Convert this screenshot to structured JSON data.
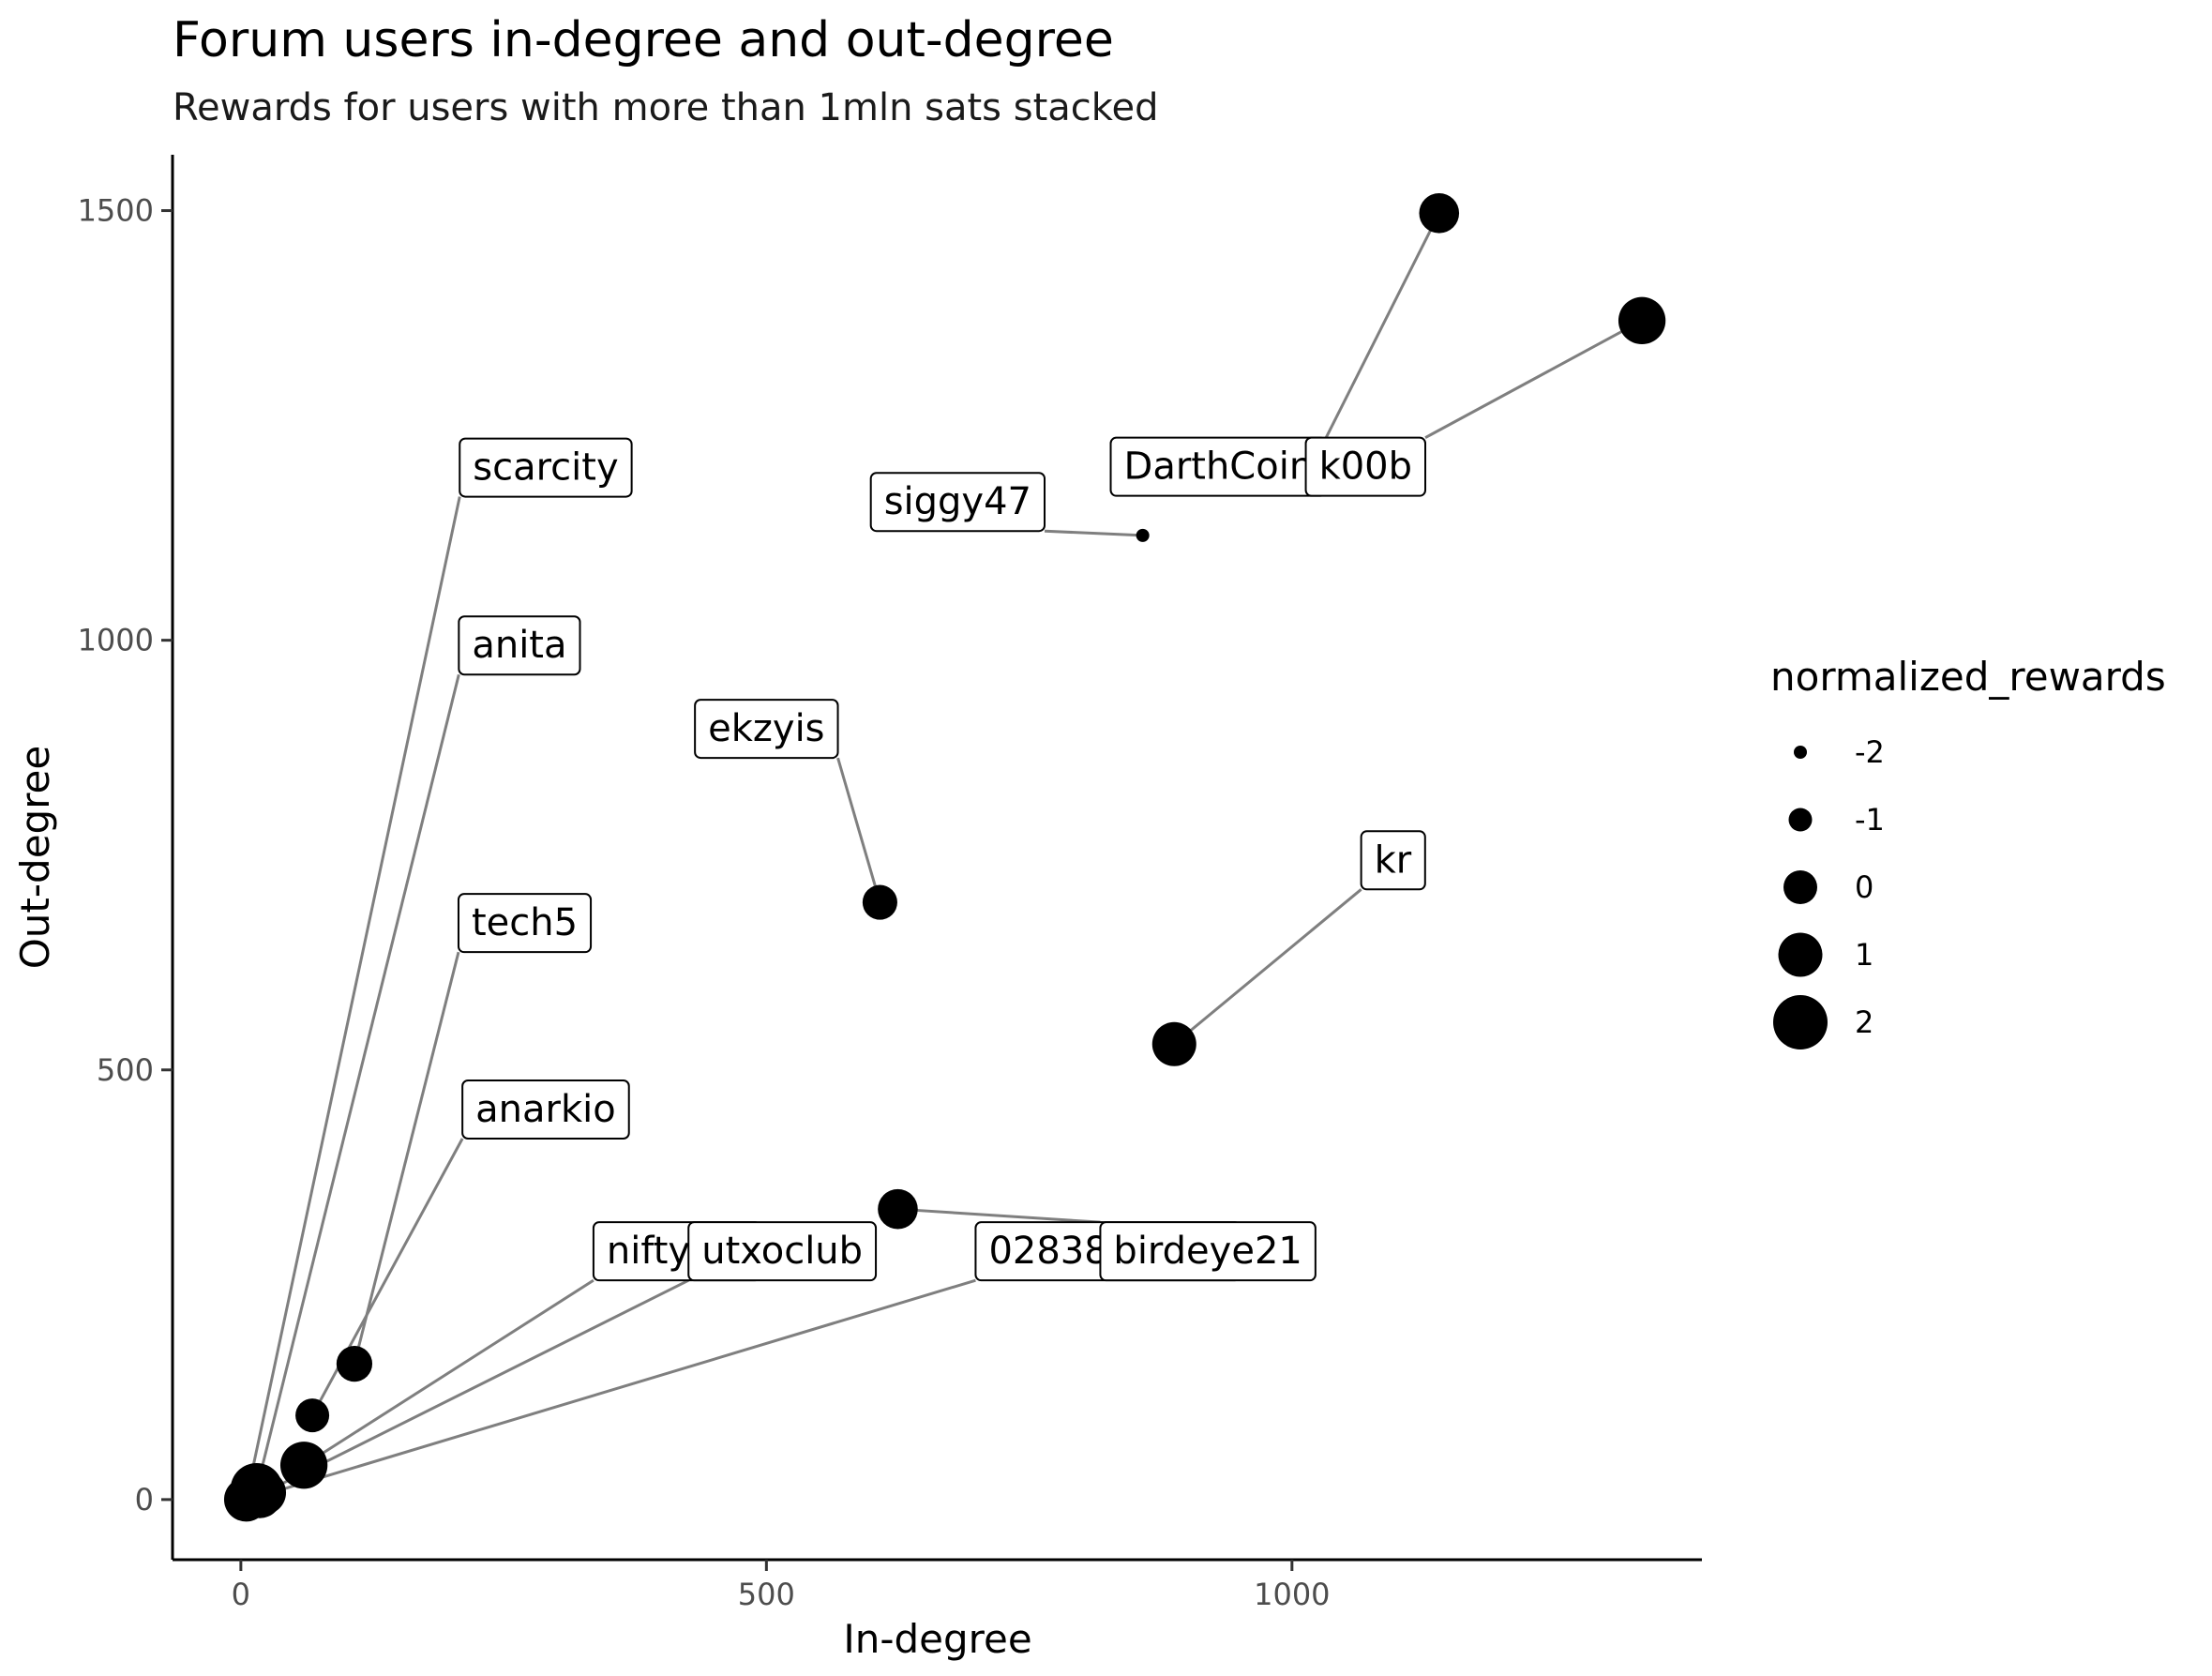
{
  "title": "Forum users in-degree and out-degree",
  "subtitle": "Rewards for users with more than 1mln sats stacked",
  "chart_data": {
    "type": "scatter",
    "xlabel": "In-degree",
    "ylabel": "Out-degree",
    "xlim": [
      -65,
      1390
    ],
    "ylim": [
      -70,
      1565
    ],
    "x_ticks": [
      0,
      500,
      1000
    ],
    "x_tick_labels": [
      "0",
      "500",
      "1000"
    ],
    "y_ticks": [
      0,
      500,
      1000,
      1500
    ],
    "y_tick_labels": [
      "0",
      "500",
      "1000",
      "1500"
    ],
    "grid": false,
    "legend": {
      "title": "normalized_rewards",
      "position": "right",
      "entries": [
        {
          "label": "-2",
          "value": -2
        },
        {
          "label": "-1",
          "value": -1
        },
        {
          "label": "0",
          "value": 0
        },
        {
          "label": "1",
          "value": 1
        },
        {
          "label": "2",
          "value": 2
        }
      ]
    },
    "points": [
      {
        "name": "scarcity",
        "x": 5,
        "y": 0,
        "size": 1.0,
        "label_x": 290,
        "label_y": 1202
      },
      {
        "name": "anita",
        "x": 15,
        "y": 12,
        "size": 1.8,
        "label_x": 265,
        "label_y": 995
      },
      {
        "name": "tech5",
        "x": 108,
        "y": 158,
        "size": 0.2,
        "label_x": 270,
        "label_y": 672
      },
      {
        "name": "anarkio",
        "x": 68,
        "y": 98,
        "size": 0.0,
        "label_x": 290,
        "label_y": 455
      },
      {
        "name": "niftynei",
        "x": 60,
        "y": 40,
        "size": 1.3,
        "label_x": 415,
        "label_y": 290
      },
      {
        "name": "utxoclub",
        "x": 22,
        "y": 8,
        "size": 1.0,
        "label_x": 515,
        "label_y": 290
      },
      {
        "name": "02838203b0",
        "x": 18,
        "y": 4,
        "size": 1.0,
        "label_x": 825,
        "label_y": 290
      },
      {
        "name": "birdeye21",
        "x": 625,
        "y": 338,
        "size": 0.6,
        "label_x": 920,
        "label_y": 290
      },
      {
        "name": "ekzyis",
        "x": 608,
        "y": 695,
        "size": 0.1,
        "label_x": 500,
        "label_y": 898
      },
      {
        "name": "kr",
        "x": 888,
        "y": 530,
        "size": 1.0,
        "label_x": 1096,
        "label_y": 745
      },
      {
        "name": "siggy47",
        "x": 858,
        "y": 1122,
        "size": -2.0,
        "label_x": 682,
        "label_y": 1162
      },
      {
        "name": "DarthCoin",
        "x": 1140,
        "y": 1497,
        "size": 0.6,
        "label_x": 930,
        "label_y": 1203
      },
      {
        "name": "k00b",
        "x": 1333,
        "y": 1372,
        "size": 1.3,
        "label_x": 1070,
        "label_y": 1203
      }
    ]
  }
}
